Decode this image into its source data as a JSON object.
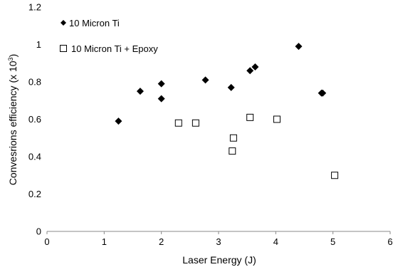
{
  "chart_data": {
    "type": "scatter",
    "xlabel": "Laser Energy (J)",
    "ylabel_main": "Convesrions efficiency (x 10",
    "ylabel_sup": "3",
    "ylabel_end": ")",
    "xlim": [
      0,
      6
    ],
    "ylim": [
      0,
      1.2
    ],
    "x_ticks": [
      "0",
      "1",
      "2",
      "3",
      "4",
      "5",
      "6"
    ],
    "y_ticks": [
      "0",
      "0.2",
      "0.4",
      "0.6",
      "0.8",
      "1",
      "1.2"
    ],
    "grid": false,
    "legend_position": "top-left",
    "series": [
      {
        "name": "10 Micron Ti",
        "marker": "diamond",
        "color": "#000000",
        "points": [
          [
            1.25,
            0.59
          ],
          [
            1.63,
            0.75
          ],
          [
            2.0,
            0.79
          ],
          [
            2.0,
            0.71
          ],
          [
            2.77,
            0.81
          ],
          [
            3.22,
            0.77
          ],
          [
            3.55,
            0.86
          ],
          [
            3.64,
            0.88
          ],
          [
            4.4,
            0.99
          ],
          [
            4.8,
            0.74
          ],
          [
            4.82,
            0.74
          ]
        ]
      },
      {
        "name": "10 Micron Ti + Epoxy",
        "marker": "square-open",
        "color": "#000000",
        "points": [
          [
            2.3,
            0.58
          ],
          [
            2.6,
            0.58
          ],
          [
            3.24,
            0.43
          ],
          [
            3.26,
            0.5
          ],
          [
            3.55,
            0.61
          ],
          [
            4.02,
            0.6
          ],
          [
            5.03,
            0.3
          ]
        ]
      }
    ]
  }
}
